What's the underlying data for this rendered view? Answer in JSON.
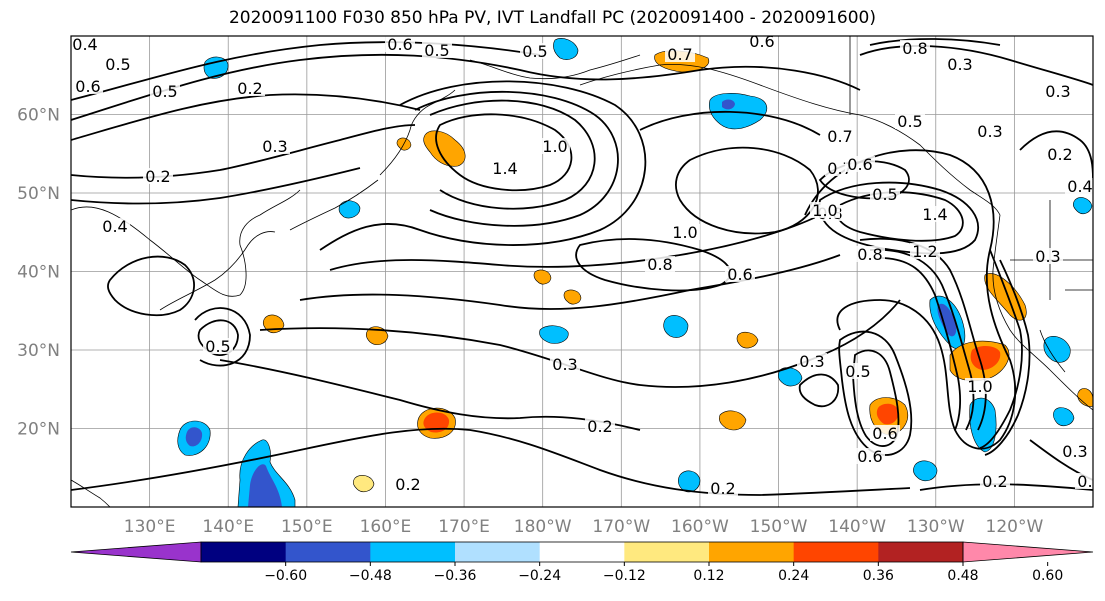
{
  "title": "2020091100 F030 850 hPa PV, IVT Landfall PC (2020091400 - 2020091600)",
  "map": {
    "lon_range": [
      120,
      250
    ],
    "lat_range": [
      10,
      70
    ],
    "lat_labels": [
      "20°N",
      "30°N",
      "40°N",
      "50°N",
      "60°N"
    ],
    "lon_labels": [
      "130°E",
      "140°E",
      "150°E",
      "160°E",
      "170°E",
      "180°W",
      "170°W",
      "160°W",
      "150°W",
      "140°W",
      "130°W",
      "120°W"
    ],
    "grid": true
  },
  "contour_labels": [
    "0.6",
    "0.5",
    "0.5",
    "0.7",
    "0.6",
    "0.8",
    "0.4",
    "0.5",
    "0.6",
    "0.5",
    "0.2",
    "0.3",
    "0.2",
    "0.4",
    "1.4",
    "1.0",
    "0.7",
    "0.5",
    "0.3",
    "0.2",
    "0.4",
    "0.3",
    "0.7",
    "0.6",
    "0.3",
    "0.5",
    "0.8",
    "1.0",
    "0.8",
    "0.6",
    "1.0",
    "1.4",
    "1.2",
    "0.8",
    "0.3",
    "0.5",
    "0.3",
    "0.3",
    "0.5",
    "0.2",
    "0.2",
    "0.2",
    "0.2",
    "0.6",
    "1.0",
    "0.6",
    "0.3",
    "0.4"
  ],
  "colorbar": {
    "ticks": [
      "−0.60",
      "−0.48",
      "−0.36",
      "−0.24",
      "−0.12",
      "0.12",
      "0.24",
      "0.36",
      "0.48",
      "0.60"
    ],
    "colors": [
      "#9933cc",
      "#000080",
      "#3355cc",
      "#00bfff",
      "#b0e0ff",
      "#ffffff",
      "#ffe97f",
      "#ffa500",
      "#ff4500",
      "#b22222",
      "#ff88aa"
    ]
  }
}
